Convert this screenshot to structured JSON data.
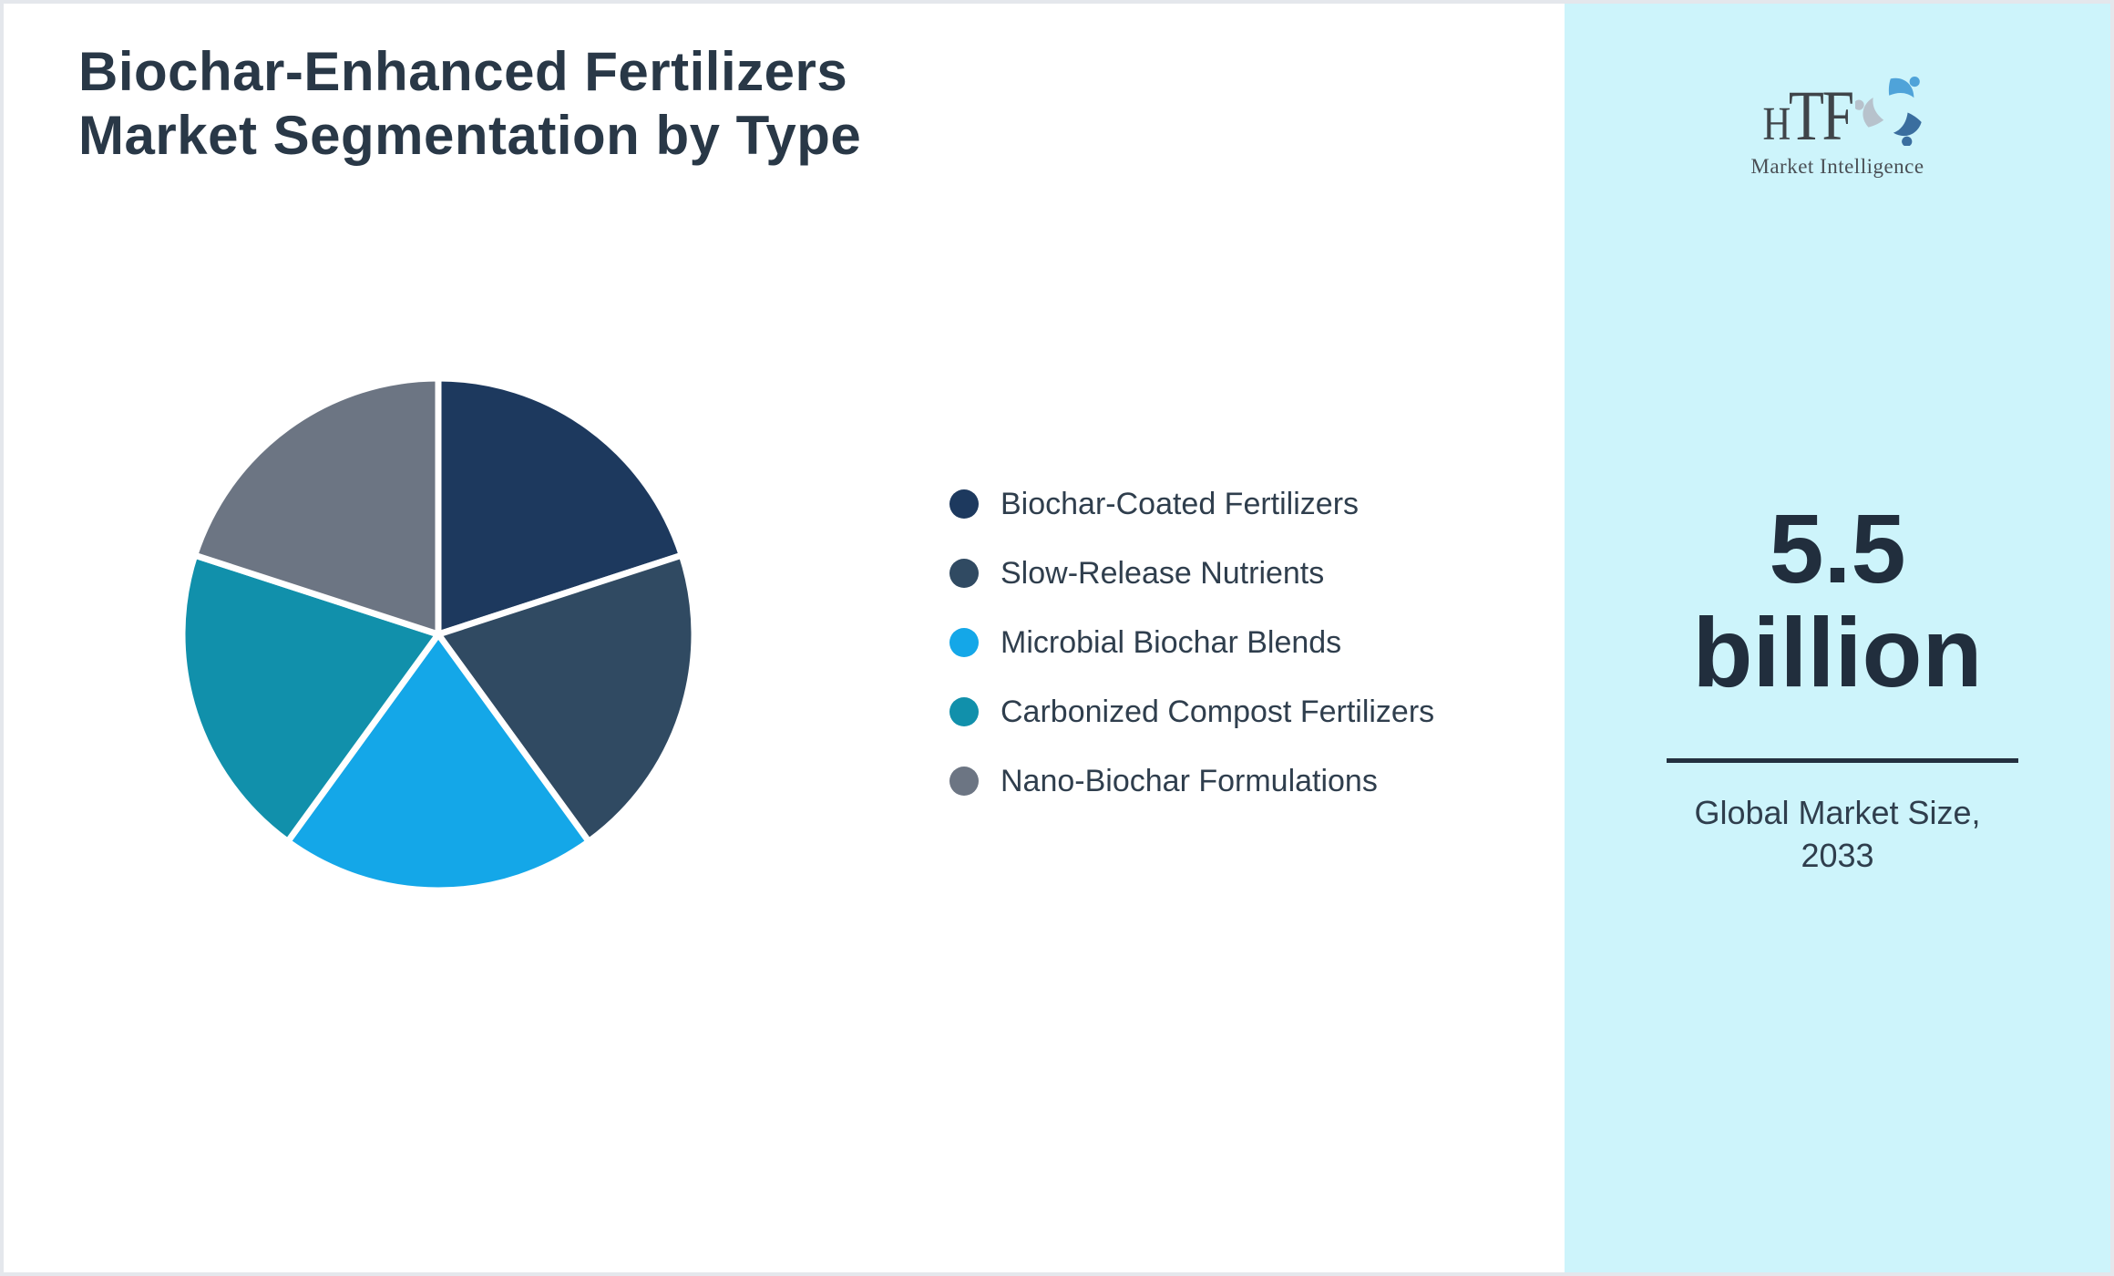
{
  "theme": {
    "page_bg": "#ffffff",
    "page_border": "#e4e7ec",
    "sidebar_bg": "#cdf4fb",
    "divider": "#233040",
    "title_color": "#293847",
    "text_color": "#2f3e4d",
    "number_color": "#212e3d",
    "logo_text_color": "#3f4449",
    "logo_sub_color": "#4a4f55"
  },
  "header": {
    "title_line1": "Biochar-Enhanced Fertilizers",
    "title_line2": "Market Segmentation by Type"
  },
  "logo": {
    "brand_first_letter": "H",
    "brand_rest": "TF",
    "subtitle": "Market Intelligence",
    "icon_colors": [
      "#4fa3d9",
      "#3a6e9f",
      "#b7c2cc"
    ]
  },
  "sidebar": {
    "market_size_value": "5.5",
    "market_size_unit": "billion",
    "caption_line1": "Global Market Size,",
    "caption_line2": "2033"
  },
  "chart_data": {
    "type": "pie",
    "title": "Biochar-Enhanced Fertilizers Market Segmentation by Type",
    "legend_position": "right",
    "start_angle_deg": -90,
    "direction": "clockwise",
    "radius_px": 281,
    "slice_gap_color": "#ffffff",
    "slice_gap_width": 7,
    "segments": [
      {
        "label": "Biochar-Coated Fertilizers",
        "value_pct": 20,
        "color": "#1d395e"
      },
      {
        "label": "Slow-Release Nutrients",
        "value_pct": 20,
        "color": "#304a62"
      },
      {
        "label": "Microbial Biochar Blends",
        "value_pct": 20,
        "color": "#14a7e8"
      },
      {
        "label": "Carbonized Compost Fertilizers",
        "value_pct": 20,
        "color": "#1190ab"
      },
      {
        "label": "Nano-Biochar Formulations",
        "value_pct": 20,
        "color": "#6c7583"
      }
    ]
  }
}
